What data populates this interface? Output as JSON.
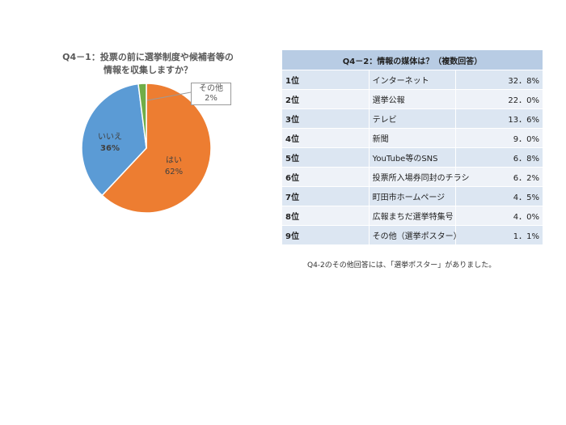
{
  "chart_data": [
    {
      "type": "pie",
      "title_line1": "Q4－1：投票の前に選挙制度や候補者等の",
      "title_line2": "情報を収集しますか？",
      "slices": [
        {
          "name": "はい",
          "value": 62,
          "label": "62%",
          "color": "#ed7d31"
        },
        {
          "name": "いいえ",
          "value": 36,
          "label": "36%",
          "color": "#5b9bd5"
        },
        {
          "name": "その他",
          "value": 2,
          "label": "2%",
          "color": "#70ad47"
        }
      ],
      "start": "12 o'clock, clockwise"
    },
    {
      "type": "table",
      "title": "Q4－2：情報の媒体は？（複数回答）",
      "rows": [
        {
          "rank": "1位",
          "label": "インターネット",
          "value": "32．8%",
          "number": 32.8
        },
        {
          "rank": "2位",
          "label": "選挙公報",
          "value": "22．0%",
          "number": 22.0
        },
        {
          "rank": "3位",
          "label": "テレビ",
          "value": "13．6%",
          "number": 13.6
        },
        {
          "rank": "4位",
          "label": "新聞",
          "value": "9．0%",
          "number": 9.0
        },
        {
          "rank": "5位",
          "label": "YouTube等のSNS",
          "value": "6．8%",
          "number": 6.8
        },
        {
          "rank": "6位",
          "label": "投票所入場券同封のチラシ",
          "value": "6．2%",
          "number": 6.2
        },
        {
          "rank": "7位",
          "label": "町田市ホームページ",
          "value": "4．5%",
          "number": 4.5
        },
        {
          "rank": "8位",
          "label": "広報まちだ選挙特集号",
          "value": "4．0%",
          "number": 4.0
        },
        {
          "rank": "9位",
          "label": "その他（選挙ポスター）",
          "value": "1．1%",
          "number": 1.1
        }
      ],
      "footnote": "Q4-2のその他回答には、「選挙ポスター」がありました。"
    }
  ]
}
